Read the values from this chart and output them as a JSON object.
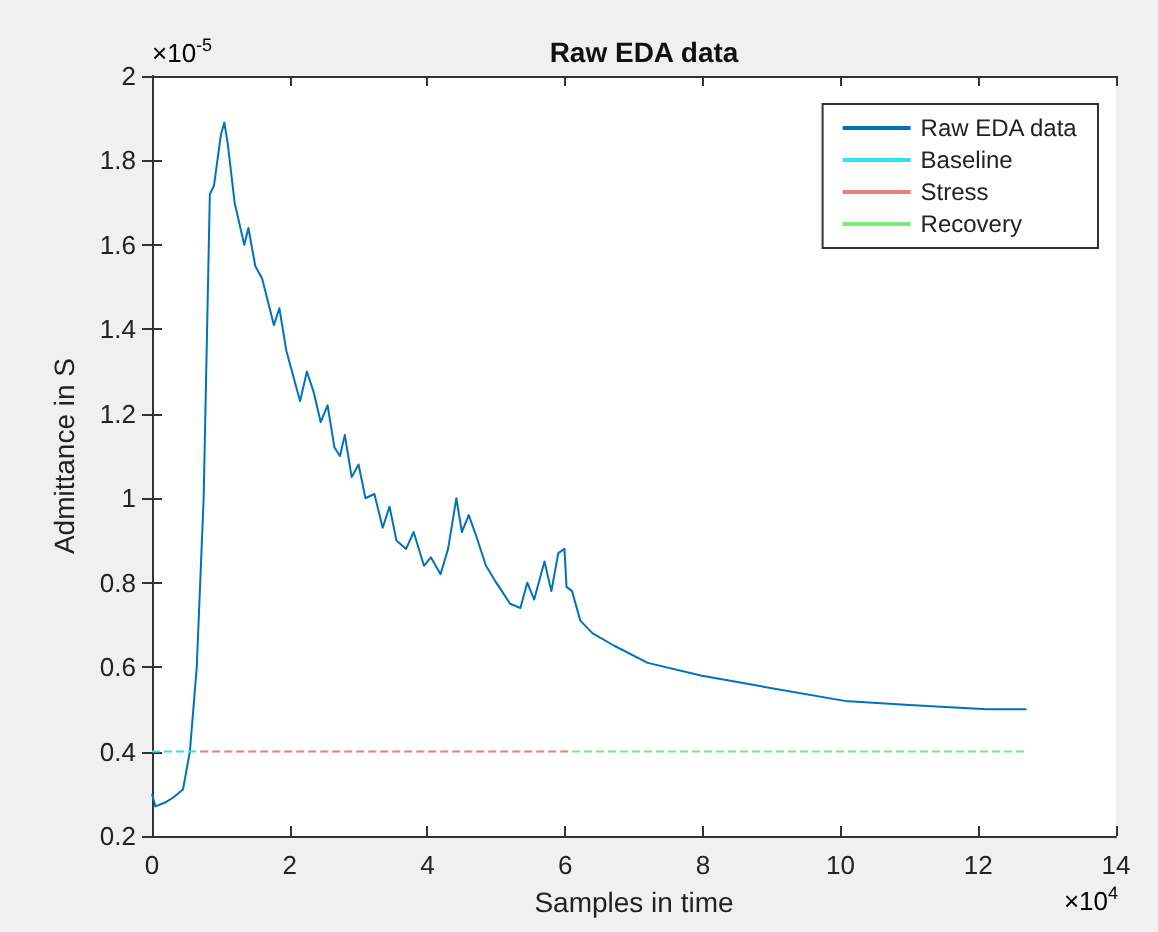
{
  "chart_data": {
    "type": "line",
    "title": "Raw EDA data",
    "xlabel": "Samples in time",
    "ylabel": "Admittance in S",
    "annotations": [
      "×10$^{-5}$",
      "×10$^{4}$"
    ],
    "xlim": [
      0,
      14
    ],
    "xticks": [
      0,
      2,
      4,
      6,
      8,
      10,
      12,
      14
    ],
    "ylim": [
      0.2,
      2
    ],
    "yticks": [
      0.2,
      0.4,
      0.6,
      0.8,
      1,
      1.2,
      1.4,
      1.6,
      1.8,
      2
    ],
    "grid": false,
    "legend": "top right",
    "marker": "none",
    "series": [
      {
        "name": "Raw EDA data",
        "color": "#0072bd",
        "line_style": "solid",
        "x": [
          0,
          0.05,
          0.2,
          0.3,
          0.45,
          0.55,
          0.65,
          0.75,
          0.84,
          0.9,
          0.95,
          1.0,
          1.05,
          1.1,
          1.2,
          1.34,
          1.4,
          1.5,
          1.6,
          1.77,
          1.85,
          1.95,
          2.15,
          2.25,
          2.35,
          2.45,
          2.55,
          2.65,
          2.73,
          2.8,
          2.9,
          3.0,
          3.1,
          3.23,
          3.35,
          3.45,
          3.55,
          3.69,
          3.8,
          3.95,
          4.05,
          4.19,
          4.3,
          4.42,
          4.5,
          4.6,
          4.71,
          4.85,
          5.0,
          5.2,
          5.35,
          5.45,
          5.55,
          5.7,
          5.8,
          5.9,
          5.99,
          6.02,
          6.1,
          6.22,
          6.4,
          6.72,
          7.2,
          7.97,
          9.0,
          10.06,
          11.0,
          12.12,
          12.7
        ],
        "values": [
          0.3,
          0.27,
          0.28,
          0.29,
          0.31,
          0.4,
          0.6,
          1.0,
          1.72,
          1.74,
          1.8,
          1.86,
          1.89,
          1.84,
          1.7,
          1.6,
          1.64,
          1.55,
          1.52,
          1.41,
          1.45,
          1.35,
          1.23,
          1.3,
          1.25,
          1.18,
          1.22,
          1.12,
          1.1,
          1.15,
          1.05,
          1.08,
          1.0,
          1.01,
          0.93,
          0.98,
          0.9,
          0.88,
          0.92,
          0.84,
          0.86,
          0.82,
          0.88,
          1.0,
          0.92,
          0.96,
          0.91,
          0.84,
          0.8,
          0.75,
          0.74,
          0.8,
          0.76,
          0.85,
          0.78,
          0.87,
          0.88,
          0.79,
          0.78,
          0.71,
          0.68,
          0.65,
          0.61,
          0.58,
          0.55,
          0.52,
          0.51,
          0.5,
          0.5
        ]
      },
      {
        "name": "Baseline",
        "color": "#33e0f0",
        "line_style": "dashed",
        "x": [
          0,
          0.7
        ],
        "values": [
          0.4,
          0.4
        ]
      },
      {
        "name": "Stress",
        "color": "#f07b7b",
        "line_style": "dashed",
        "x": [
          0.7,
          6.1
        ],
        "values": [
          0.4,
          0.4
        ]
      },
      {
        "name": "Recovery",
        "color": "#7be87b",
        "line_style": "dashed",
        "x": [
          6.1,
          12.7
        ],
        "values": [
          0.4,
          0.4
        ]
      }
    ]
  }
}
